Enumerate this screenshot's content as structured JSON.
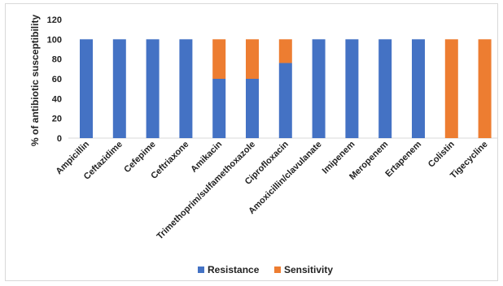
{
  "chart_data": {
    "type": "bar",
    "stacked": true,
    "title": "",
    "xlabel": "",
    "ylabel": "% of antibiotic susceptibility",
    "ylim": [
      0,
      120
    ],
    "yticks": [
      0,
      20,
      40,
      60,
      80,
      100,
      120
    ],
    "categories": [
      "Ampicillin",
      "Ceftazidime",
      "Cefepime",
      "Ceftriaxone",
      "Amikacin",
      "Trimethoprim/sulfamethoxazole",
      "Ciprofloxacin",
      "Amoxicillin/clavulanate",
      "Imipenem",
      "Meropenem",
      "Ertapenem",
      "Colistin",
      "Tigecycline"
    ],
    "series": [
      {
        "name": "Resistance",
        "color": "#4472c4",
        "values": [
          100,
          100,
          100,
          100,
          60,
          60,
          76,
          100,
          100,
          100,
          100,
          0,
          0
        ]
      },
      {
        "name": "Sensitivity",
        "color": "#ed7d31",
        "values": [
          0,
          0,
          0,
          0,
          40,
          40,
          24,
          0,
          0,
          0,
          0,
          100,
          100
        ]
      }
    ],
    "grid": false,
    "legend": "bottom"
  }
}
